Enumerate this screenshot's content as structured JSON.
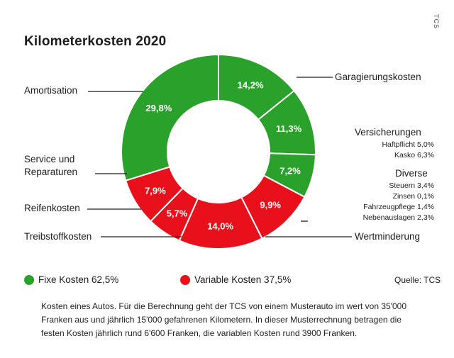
{
  "chart_data": {
    "type": "pie",
    "title": "Kilometerkosten 2020",
    "colors": {
      "fixed": "#2aa12a",
      "variable": "#e8101a"
    },
    "slices": [
      {
        "name": "Garagierungskosten",
        "value": 14.2,
        "label": "14,2%",
        "group": "fixed"
      },
      {
        "name": "Versicherungen",
        "value": 11.3,
        "label": "11,3%",
        "group": "fixed"
      },
      {
        "name": "Diverse",
        "value": 7.2,
        "label": "7,2%",
        "group": "fixed"
      },
      {
        "name": "Wertminderung",
        "value": 9.9,
        "label": "9,9%",
        "group": "variable"
      },
      {
        "name": "Treibstoffkosten",
        "value": 14.0,
        "label": "14,0%",
        "group": "variable"
      },
      {
        "name": "Reifenkosten",
        "value": 5.7,
        "label": "5,7%",
        "group": "variable"
      },
      {
        "name": "Service und Reparaturen",
        "value": 7.9,
        "label": "7,9%",
        "group": "variable"
      },
      {
        "name": "Amortisation",
        "value": 29.8,
        "label": "29,8%",
        "group": "fixed"
      }
    ],
    "labels": {
      "amortisation": "Amortisation",
      "garagierung": "Garagierungskosten",
      "versicherungen": "Versicherungen",
      "haftpflicht": "Haftpflicht 5,0%",
      "kasko": "Kasko 6,3%",
      "diverse": "Diverse",
      "steuern": "Steuern 3,4%",
      "zinsen": "Zinsen 0,1%",
      "fahrzeugpflege": "Fahrzeugpflege 1,4%",
      "nebenauslagen": "Nebenauslagen 2,3%",
      "wertminderung": "Wertminderung",
      "service_line1": "Service und",
      "service_line2": "Reparaturen",
      "reifen": "Reifenkosten",
      "treibstoff": "Treibstoffkosten"
    },
    "legend": {
      "fixed": "Fixe Kosten 62,5%",
      "variable": "Variable Kosten 37,5%"
    },
    "source": "Quelle: TCS"
  },
  "credit": "TCS",
  "caption": "Kosten eines Autos. Für die Berechnung geht der TCS von einem Musterauto im wert von 35'000 Franken aus und jährlich 15'000 gefahrenen Kilometern. In dieser Musterrechnung betragen die festen Kosten jährlich rund 6'600 Franken, die variablen Kosten rund 3900 Franken."
}
